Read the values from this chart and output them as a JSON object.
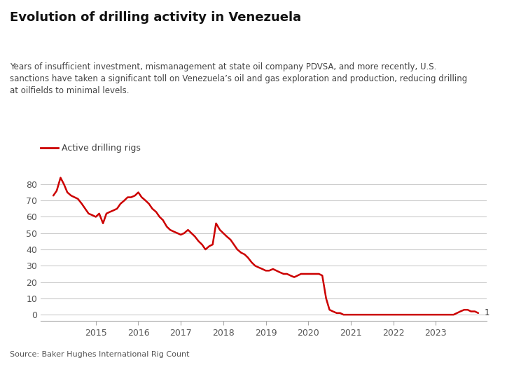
{
  "title": "Evolution of drilling activity in Venezuela",
  "subtitle": "Years of insufficient investment, mismanagement at state oil company PDVSA, and more recently, U.S.\nsanctions have taken a significant toll on Venezuela’s oil and gas exploration and production, reducing drilling\nat oilfields to minimal levels.",
  "legend_label": "Active drilling rigs",
  "source": "Source: Baker Hughes International Rig Count",
  "line_color": "#cc0000",
  "background_color": "#ffffff",
  "ylim": [
    -4,
    90
  ],
  "yticks": [
    0,
    10,
    20,
    30,
    40,
    50,
    60,
    70,
    80
  ],
  "end_label": "1",
  "x": [
    2014.0,
    2014.08,
    2014.17,
    2014.25,
    2014.33,
    2014.42,
    2014.5,
    2014.58,
    2014.67,
    2014.75,
    2014.83,
    2014.92,
    2015.0,
    2015.08,
    2015.17,
    2015.25,
    2015.33,
    2015.42,
    2015.5,
    2015.58,
    2015.67,
    2015.75,
    2015.83,
    2015.92,
    2016.0,
    2016.08,
    2016.17,
    2016.25,
    2016.33,
    2016.42,
    2016.5,
    2016.58,
    2016.67,
    2016.75,
    2016.83,
    2016.92,
    2017.0,
    2017.08,
    2017.17,
    2017.25,
    2017.33,
    2017.42,
    2017.5,
    2017.58,
    2017.67,
    2017.75,
    2017.83,
    2017.92,
    2018.0,
    2018.08,
    2018.17,
    2018.25,
    2018.33,
    2018.42,
    2018.5,
    2018.58,
    2018.67,
    2018.75,
    2018.83,
    2018.92,
    2019.0,
    2019.08,
    2019.17,
    2019.25,
    2019.33,
    2019.42,
    2019.5,
    2019.58,
    2019.67,
    2019.75,
    2019.83,
    2019.92,
    2020.0,
    2020.08,
    2020.17,
    2020.25,
    2020.33,
    2020.42,
    2020.5,
    2020.58,
    2020.67,
    2020.75,
    2020.83,
    2020.92,
    2021.0,
    2021.08,
    2021.17,
    2021.25,
    2021.33,
    2021.42,
    2021.5,
    2021.58,
    2021.67,
    2021.75,
    2021.83,
    2021.92,
    2022.0,
    2022.08,
    2022.17,
    2022.25,
    2022.33,
    2022.42,
    2022.5,
    2022.58,
    2022.67,
    2022.75,
    2022.83,
    2022.92,
    2023.0,
    2023.08,
    2023.17,
    2023.25,
    2023.33,
    2023.42,
    2023.5,
    2023.58,
    2023.67,
    2023.75,
    2023.83,
    2023.92,
    2024.0
  ],
  "y": [
    73,
    76,
    84,
    80,
    75,
    73,
    72,
    71,
    68,
    65,
    62,
    61,
    60,
    62,
    56,
    62,
    63,
    64,
    65,
    68,
    70,
    72,
    72,
    73,
    75,
    72,
    70,
    68,
    65,
    63,
    60,
    58,
    54,
    52,
    51,
    50,
    49,
    50,
    52,
    50,
    48,
    45,
    43,
    40,
    42,
    43,
    56,
    52,
    50,
    48,
    46,
    43,
    40,
    38,
    37,
    35,
    32,
    30,
    29,
    28,
    27,
    27,
    28,
    27,
    26,
    25,
    25,
    24,
    23,
    24,
    25,
    25,
    25,
    25,
    25,
    25,
    24,
    10,
    3,
    2,
    1,
    1,
    0,
    0,
    0,
    0,
    0,
    0,
    0,
    0,
    0,
    0,
    0,
    0,
    0,
    0,
    0,
    0,
    0,
    0,
    0,
    0,
    0,
    0,
    0,
    0,
    0,
    0,
    0,
    0,
    0,
    0,
    0,
    0,
    1,
    2,
    3,
    3,
    2,
    2,
    1
  ],
  "xticks": [
    2015,
    2016,
    2017,
    2018,
    2019,
    2020,
    2021,
    2022,
    2023
  ],
  "xlim": [
    2013.7,
    2024.2
  ]
}
